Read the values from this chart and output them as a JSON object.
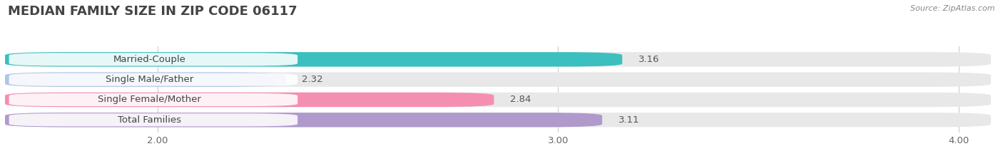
{
  "title": "MEDIAN FAMILY SIZE IN ZIP CODE 06117",
  "source": "Source: ZipAtlas.com",
  "categories": [
    "Married-Couple",
    "Single Male/Father",
    "Single Female/Mother",
    "Total Families"
  ],
  "values": [
    3.16,
    2.32,
    2.84,
    3.11
  ],
  "bar_colors": [
    "#3bbfbf",
    "#b0c4e8",
    "#f48fb1",
    "#b09acc"
  ],
  "bar_bg_color": "#e8e8e8",
  "xlim_min": 1.62,
  "xlim_max": 4.08,
  "xticks": [
    2.0,
    3.0,
    4.0
  ],
  "xtick_labels": [
    "2.00",
    "3.00",
    "4.00"
  ],
  "title_fontsize": 13,
  "label_fontsize": 9.5,
  "value_fontsize": 9.5,
  "source_fontsize": 8,
  "background_color": "#ffffff",
  "grid_color": "#d0d0d0",
  "label_text_color": "#444444",
  "value_text_color": "#555555"
}
